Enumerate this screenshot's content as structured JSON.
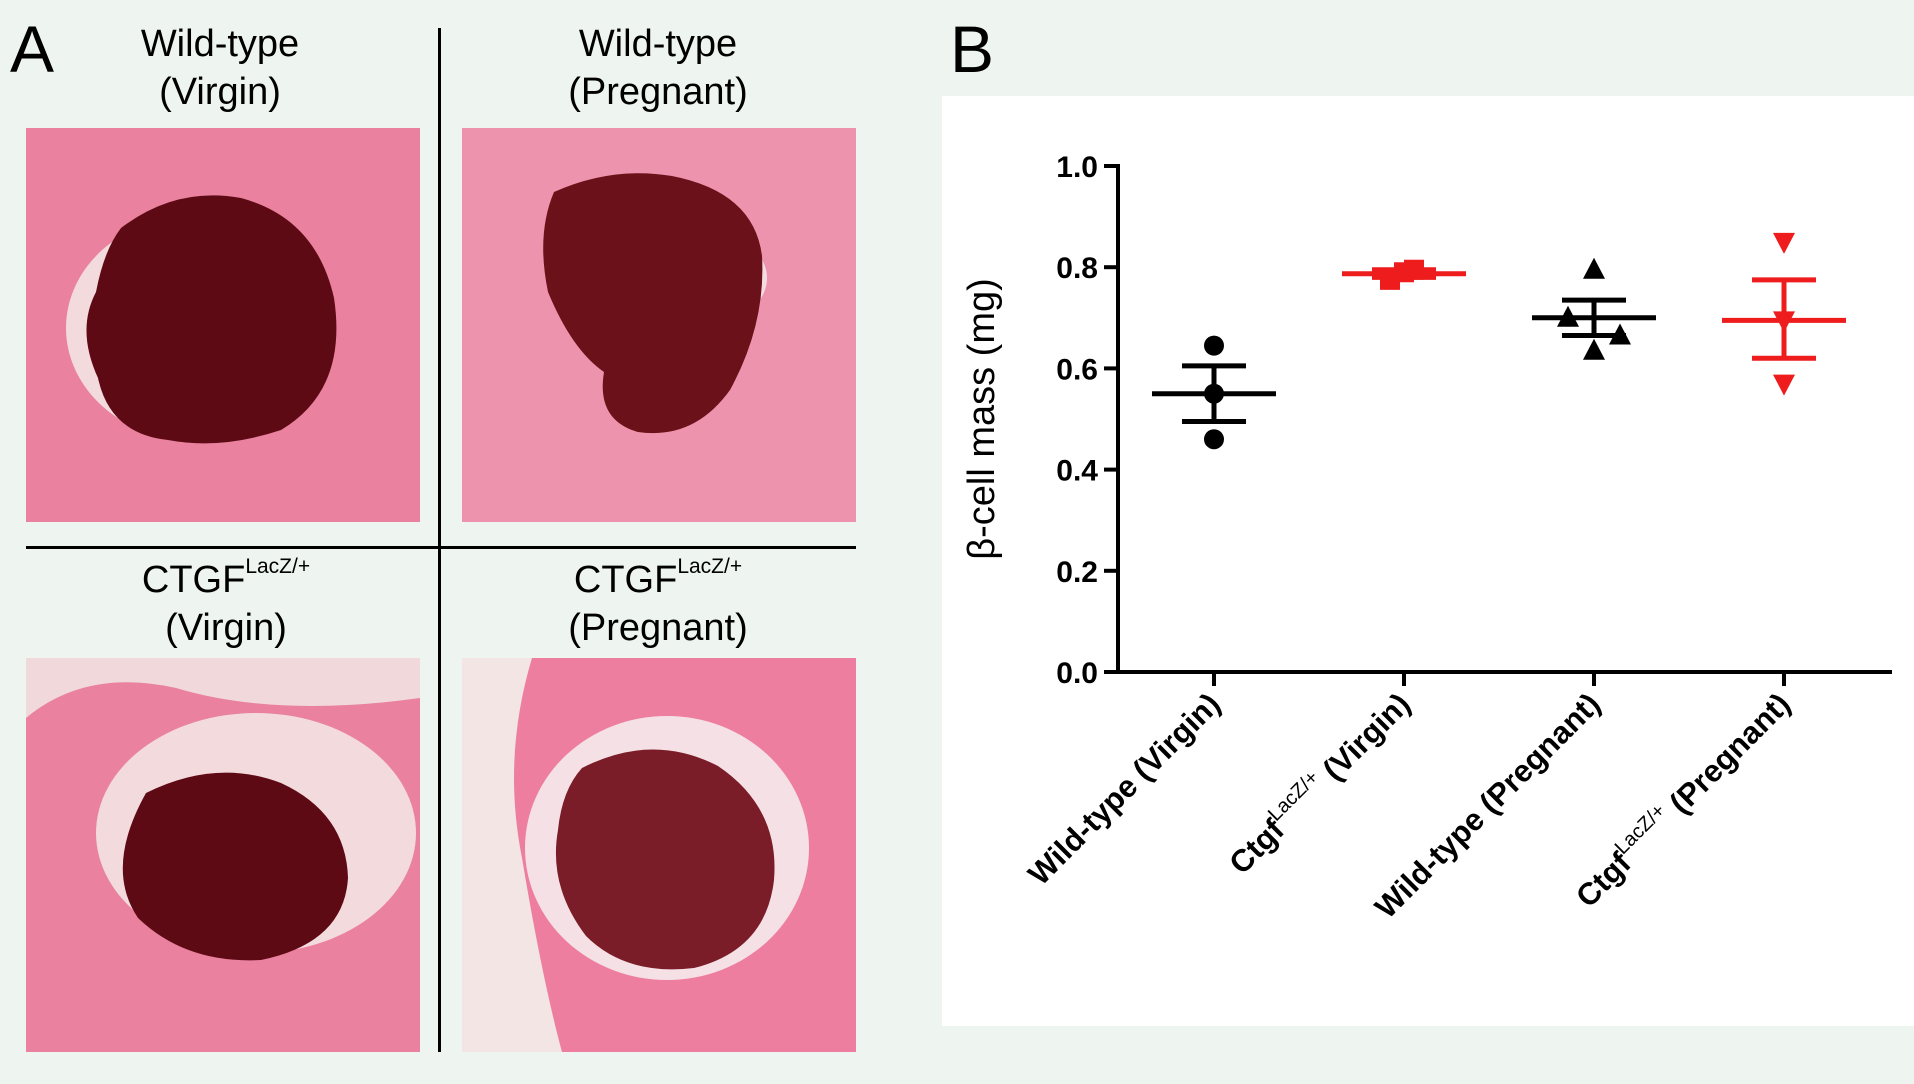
{
  "panel_a": {
    "letter": "A",
    "panels": [
      {
        "line1": "Wild-type",
        "line2": "(Virgin)"
      },
      {
        "line1": "Wild-type",
        "line2": "(Pregnant)"
      },
      {
        "line1": "CTGF",
        "line1_sup": "LacZ/+",
        "line2": "(Virgin)"
      },
      {
        "line1": "CTGF",
        "line1_sup": "LacZ/+",
        "line2": "(Pregnant)"
      }
    ]
  },
  "panel_b": {
    "letter": "B"
  },
  "colors": {
    "tissue": "#e9819f",
    "islet": "#5e0a14",
    "black_series": "#000000",
    "red_series": "#ee1c1c"
  },
  "chart_data": {
    "type": "scatter",
    "ylabel": "β-cell mass (mg)",
    "ylim": [
      0.0,
      1.0
    ],
    "yticks": [
      "0.0",
      "0.2",
      "0.4",
      "0.6",
      "0.8",
      "1.0"
    ],
    "categories": [
      {
        "label": "Wild-type (Virgin)",
        "base": "",
        "sup": ""
      },
      {
        "label": "Ctgf (Virgin)",
        "base": "Ctgf",
        "sup": "LacZ/+",
        "rest": " (Virgin)"
      },
      {
        "label": "Wild-type (Pregnant)",
        "base": "",
        "sup": ""
      },
      {
        "label": "Ctgf (Pregnant)",
        "base": "Ctgf",
        "sup": "LacZ/+",
        "rest": " (Pregnant)"
      }
    ],
    "groups": [
      {
        "color": "black",
        "marker": "circle",
        "points": [
          0.645,
          0.55,
          0.46
        ],
        "mean": 0.55,
        "sem_low": 0.495,
        "sem_high": 0.605
      },
      {
        "color": "red",
        "marker": "square",
        "points": [
          0.795,
          0.79,
          0.775
        ],
        "mean": 0.787,
        "sem_low": 0.78,
        "sem_high": 0.795
      },
      {
        "color": "black",
        "marker": "triangle-up",
        "points": [
          0.795,
          0.7,
          0.665,
          0.635
        ],
        "mean": 0.7,
        "sem_low": 0.665,
        "sem_high": 0.735
      },
      {
        "color": "red",
        "marker": "triangle-down",
        "points": [
          0.85,
          0.695,
          0.57
        ],
        "mean": 0.695,
        "sem_low": 0.62,
        "sem_high": 0.775
      }
    ]
  }
}
